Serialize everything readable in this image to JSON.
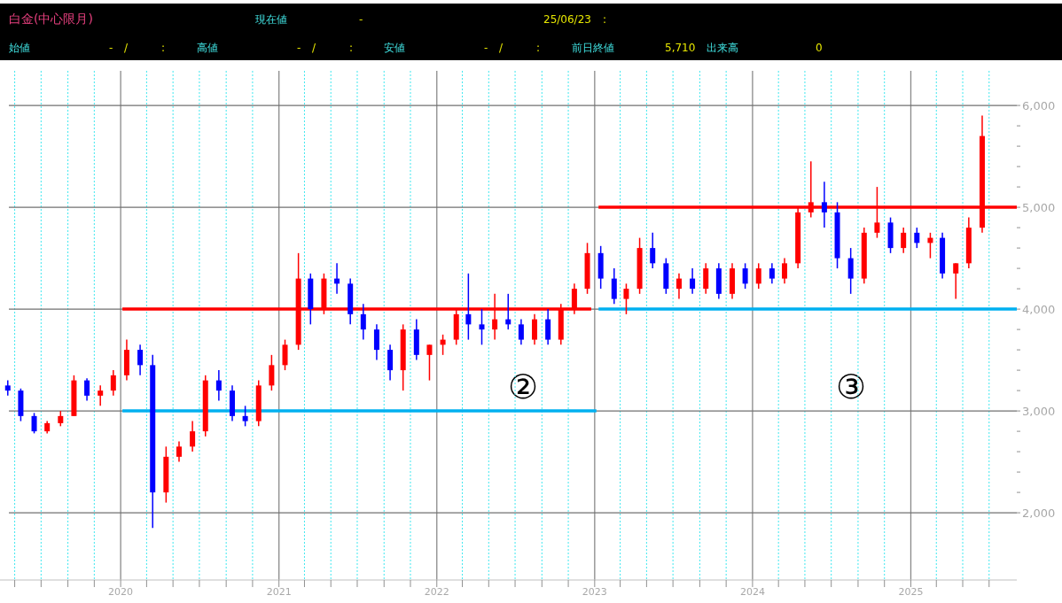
{
  "chart_data": {
    "type": "candlestick",
    "title": "白金(中心限月)",
    "annotations": [
      "現在値",
      "-",
      "25/06/23",
      ":",
      "始値",
      "-",
      "/",
      ":",
      "高値",
      "-",
      "/",
      ":",
      "安値",
      "-",
      "/",
      ":",
      "前日終値",
      "5,710",
      "出来高",
      "0",
      "②",
      "③"
    ],
    "x": [
      "2019-04-15",
      "2019-05-15",
      "2019-06-15",
      "2019-07-15",
      "2019-08-15",
      "2019-09-15",
      "2019-10-15",
      "2019-11-15",
      "2019-12-15",
      "2020-01-15",
      "2020-02-15",
      "2020-03-15",
      "2020-04-15",
      "2020-05-15",
      "2020-06-15",
      "2020-07-15",
      "2020-08-15",
      "2020-09-15",
      "2020-10-15",
      "2020-11-15",
      "2020-12-15",
      "2021-01-15",
      "2021-02-15",
      "2021-03-15",
      "2021-04-15",
      "2021-05-15",
      "2021-06-15",
      "2021-07-15",
      "2021-08-15",
      "2021-09-15",
      "2021-10-15",
      "2021-11-15",
      "2021-12-15",
      "2022-01-15",
      "2022-02-15",
      "2022-03-15",
      "2022-04-15",
      "2022-05-15",
      "2022-06-15",
      "2022-07-15",
      "2022-08-15",
      "2022-09-15",
      "2022-10-15",
      "2022-11-15",
      "2022-12-15",
      "2023-01-15",
      "2023-02-15",
      "2023-03-15",
      "2023-04-15",
      "2023-05-15",
      "2023-06-15",
      "2023-07-15",
      "2023-08-15",
      "2023-09-15",
      "2023-10-15",
      "2023-11-15",
      "2023-12-15",
      "2024-01-15",
      "2024-02-15",
      "2024-03-15",
      "2024-04-15",
      "2024-05-15",
      "2024-06-15",
      "2024-07-15",
      "2024-08-15",
      "2024-09-15",
      "2024-10-15",
      "2024-11-15",
      "2024-12-15",
      "2025-01-15",
      "2025-02-15",
      "2025-03-15",
      "2025-04-15",
      "2025-05-15",
      "2025-06-15"
    ],
    "ohlc": [
      [
        3250,
        3300,
        3150,
        3200
      ],
      [
        3200,
        3220,
        2900,
        2950
      ],
      [
        2950,
        2980,
        2780,
        2800
      ],
      [
        2800,
        2900,
        2780,
        2880
      ],
      [
        2880,
        3000,
        2850,
        2950
      ],
      [
        2950,
        3350,
        2950,
        3300
      ],
      [
        3300,
        3320,
        3100,
        3150
      ],
      [
        3150,
        3250,
        3050,
        3200
      ],
      [
        3200,
        3400,
        3150,
        3350
      ],
      [
        3350,
        3700,
        3300,
        3600
      ],
      [
        3600,
        3650,
        3350,
        3450
      ],
      [
        3450,
        3550,
        1850,
        2200
      ],
      [
        2200,
        2650,
        2100,
        2550
      ],
      [
        2550,
        2700,
        2500,
        2650
      ],
      [
        2650,
        2900,
        2600,
        2800
      ],
      [
        2800,
        3350,
        2750,
        3300
      ],
      [
        3300,
        3400,
        3100,
        3200
      ],
      [
        3200,
        3250,
        2900,
        2950
      ],
      [
        2950,
        3050,
        2850,
        2900
      ],
      [
        2900,
        3300,
        2850,
        3250
      ],
      [
        3250,
        3550,
        3200,
        3450
      ],
      [
        3450,
        3700,
        3400,
        3650
      ],
      [
        3650,
        4550,
        3600,
        4300
      ],
      [
        4300,
        4350,
        3850,
        4000
      ],
      [
        4000,
        4350,
        3950,
        4300
      ],
      [
        4300,
        4450,
        4150,
        4250
      ],
      [
        4250,
        4300,
        3850,
        3950
      ],
      [
        3950,
        4050,
        3700,
        3800
      ],
      [
        3800,
        3850,
        3500,
        3600
      ],
      [
        3600,
        3650,
        3300,
        3400
      ],
      [
        3400,
        3850,
        3200,
        3800
      ],
      [
        3800,
        3900,
        3500,
        3550
      ],
      [
        3550,
        3650,
        3300,
        3650
      ],
      [
        3650,
        3750,
        3550,
        3700
      ],
      [
        3700,
        4000,
        3650,
        3950
      ],
      [
        3950,
        4350,
        3700,
        3850
      ],
      [
        3850,
        4000,
        3650,
        3800
      ],
      [
        3800,
        4150,
        3700,
        3900
      ],
      [
        3900,
        4150,
        3800,
        3850
      ],
      [
        3850,
        3900,
        3650,
        3700
      ],
      [
        3700,
        3950,
        3650,
        3900
      ],
      [
        3900,
        4000,
        3650,
        3700
      ],
      [
        3700,
        4050,
        3650,
        4000
      ],
      [
        4000,
        4250,
        3950,
        4200
      ],
      [
        4200,
        4650,
        4150,
        4550
      ],
      [
        4550,
        4620,
        4200,
        4300
      ],
      [
        4300,
        4400,
        4050,
        4100
      ],
      [
        4100,
        4250,
        3950,
        4200
      ],
      [
        4200,
        4700,
        4150,
        4600
      ],
      [
        4600,
        4750,
        4400,
        4450
      ],
      [
        4450,
        4500,
        4150,
        4200
      ],
      [
        4200,
        4350,
        4100,
        4300
      ],
      [
        4300,
        4400,
        4150,
        4200
      ],
      [
        4200,
        4450,
        4150,
        4400
      ],
      [
        4400,
        4450,
        4100,
        4150
      ],
      [
        4150,
        4450,
        4100,
        4400
      ],
      [
        4400,
        4450,
        4200,
        4250
      ],
      [
        4250,
        4450,
        4200,
        4400
      ],
      [
        4400,
        4450,
        4250,
        4300
      ],
      [
        4300,
        4500,
        4250,
        4450
      ],
      [
        4450,
        5000,
        4400,
        4950
      ],
      [
        4950,
        5450,
        4900,
        5050
      ],
      [
        5050,
        5250,
        4800,
        4950
      ],
      [
        4950,
        5050,
        4400,
        4500
      ],
      [
        4500,
        4600,
        4150,
        4300
      ],
      [
        4300,
        4800,
        4250,
        4750
      ],
      [
        4750,
        5200,
        4700,
        4850
      ],
      [
        4850,
        4900,
        4550,
        4600
      ],
      [
        4600,
        4800,
        4550,
        4750
      ],
      [
        4750,
        4800,
        4600,
        4650
      ],
      [
        4650,
        4750,
        4500,
        4700
      ],
      [
        4700,
        4750,
        4300,
        4350
      ],
      [
        4350,
        4450,
        4100,
        4450
      ],
      [
        4450,
        4900,
        4400,
        4800
      ],
      [
        4800,
        5900,
        4750,
        5700
      ]
    ],
    "colors": [
      "#0000ff",
      "#0000ff",
      "#0000ff",
      "#ff0000",
      "#ff0000",
      "#ff0000",
      "#0000ff",
      "#ff0000",
      "#ff0000",
      "#ff0000",
      "#0000ff",
      "#0000ff",
      "#ff0000",
      "#ff0000",
      "#ff0000",
      "#ff0000",
      "#0000ff",
      "#0000ff",
      "#0000ff",
      "#ff0000",
      "#ff0000",
      "#ff0000",
      "#ff0000",
      "#0000ff",
      "#ff0000",
      "#0000ff",
      "#0000ff",
      "#0000ff",
      "#0000ff",
      "#0000ff",
      "#ff0000",
      "#0000ff",
      "#ff0000",
      "#ff0000",
      "#ff0000",
      "#0000ff",
      "#0000ff",
      "#ff0000",
      "#0000ff",
      "#0000ff",
      "#ff0000",
      "#0000ff",
      "#ff0000",
      "#ff0000",
      "#ff0000",
      "#0000ff",
      "#0000ff",
      "#ff0000",
      "#ff0000",
      "#0000ff",
      "#0000ff",
      "#ff0000",
      "#0000ff",
      "#ff0000",
      "#0000ff",
      "#ff0000",
      "#0000ff",
      "#ff0000",
      "#0000ff",
      "#ff0000",
      "#ff0000",
      "#ff0000",
      "#0000ff",
      "#0000ff",
      "#0000ff",
      "#ff0000",
      "#ff0000",
      "#0000ff",
      "#ff0000",
      "#0000ff",
      "#ff0000",
      "#0000ff",
      "#ff0000",
      "#ff0000",
      "#ff0000"
    ],
    "series": [
      {
        "type": "line",
        "x": [
          "2020-01-05",
          "2022-12-24"
        ],
        "values": [
          4000,
          4000
        ],
        "color": "#ff0000"
      },
      {
        "type": "line",
        "x": [
          "2020-01-05",
          "2023-01-05"
        ],
        "values": [
          3000,
          3000
        ],
        "color": "#00b0f0"
      },
      {
        "type": "line",
        "x": [
          "2023-01-10",
          "2025-09-03"
        ],
        "values": [
          5000,
          5000
        ],
        "color": "#ff0000"
      },
      {
        "type": "line",
        "x": [
          "2023-01-10",
          "2025-09-03"
        ],
        "values": [
          4000,
          4000
        ],
        "color": "#00b0f0"
      }
    ],
    "xlim": [
      "2019-03-28",
      "2025-09-03"
    ],
    "xticks": [
      {
        "value": "2019-05-01",
        "label": null
      },
      {
        "value": "2019-07-01",
        "label": null
      },
      {
        "value": "2019-09-01",
        "label": null
      },
      {
        "value": "2019-11-01",
        "label": null
      },
      {
        "value": "2020-01-01",
        "label": "2020"
      },
      {
        "value": "2020-03-01",
        "label": null
      },
      {
        "value": "2020-05-01",
        "label": null
      },
      {
        "value": "2020-07-01",
        "label": null
      },
      {
        "value": "2020-09-01",
        "label": null
      },
      {
        "value": "2020-11-01",
        "label": null
      },
      {
        "value": "2021-03-01",
        "label": null
      },
      {
        "value": "2021-05-01",
        "label": null
      },
      {
        "value": "2021-07-01",
        "label": null
      },
      {
        "value": "2021-09-01",
        "label": null
      },
      {
        "value": "2021-11-01",
        "label": null
      },
      {
        "value": "2022-03-01",
        "label": null
      },
      {
        "value": "2022-05-01",
        "label": null
      },
      {
        "value": "2022-07-01",
        "label": null
      },
      {
        "value": "2022-09-01",
        "label": null
      },
      {
        "value": "2022-11-01",
        "label": null
      },
      {
        "value": "2023-03-01",
        "label": null
      },
      {
        "value": "2023-05-01",
        "label": null
      },
      {
        "value": "2023-07-01",
        "label": null
      },
      {
        "value": "2023-09-01",
        "label": null
      },
      {
        "value": "2023-11-01",
        "label": null
      },
      {
        "value": "2024-03-01",
        "label": null
      },
      {
        "value": "2024-05-01",
        "label": null
      },
      {
        "value": "2024-07-01",
        "label": null
      },
      {
        "value": "2024-09-01",
        "label": null
      },
      {
        "value": "2024-11-01",
        "label": null
      },
      {
        "value": "2025-03-01",
        "label": null
      },
      {
        "value": "2025-05-01",
        "label": null
      },
      {
        "value": "2025-07-01",
        "label": null
      },
      {
        "value": "2021-01-01",
        "label": "2021"
      },
      {
        "value": "2022-01-01",
        "label": "2022"
      },
      {
        "value": "2023-01-01",
        "label": "2023"
      },
      {
        "value": "2024-01-01",
        "label": "2024"
      },
      {
        "value": "2025-01-01",
        "label": "2025"
      }
    ],
    "ylim": [
      1340,
      6340
    ],
    "yticks": [
      {
        "value": 2000,
        "label": "2,000"
      },
      {
        "value": 2200,
        "label": null
      },
      {
        "value": 2400,
        "label": null
      },
      {
        "value": 2600,
        "label": null
      },
      {
        "value": 2800,
        "label": null
      },
      {
        "value": 3000,
        "label": "3,000"
      },
      {
        "value": 3200,
        "label": null
      },
      {
        "value": 3400,
        "label": null
      },
      {
        "value": 3600,
        "label": null
      },
      {
        "value": 3800,
        "label": null
      },
      {
        "value": 4000,
        "label": "4,000"
      },
      {
        "value": 4200,
        "label": null
      },
      {
        "value": 4400,
        "label": null
      },
      {
        "value": 4600,
        "label": null
      },
      {
        "value": 4800,
        "label": null
      },
      {
        "value": 5000,
        "label": "5,000"
      },
      {
        "value": 5200,
        "label": null
      },
      {
        "value": 5400,
        "label": null
      },
      {
        "value": 5600,
        "label": null
      },
      {
        "value": 5800,
        "label": null
      },
      {
        "value": 6000,
        "label": "6,000"
      }
    ],
    "grid": true
  }
}
